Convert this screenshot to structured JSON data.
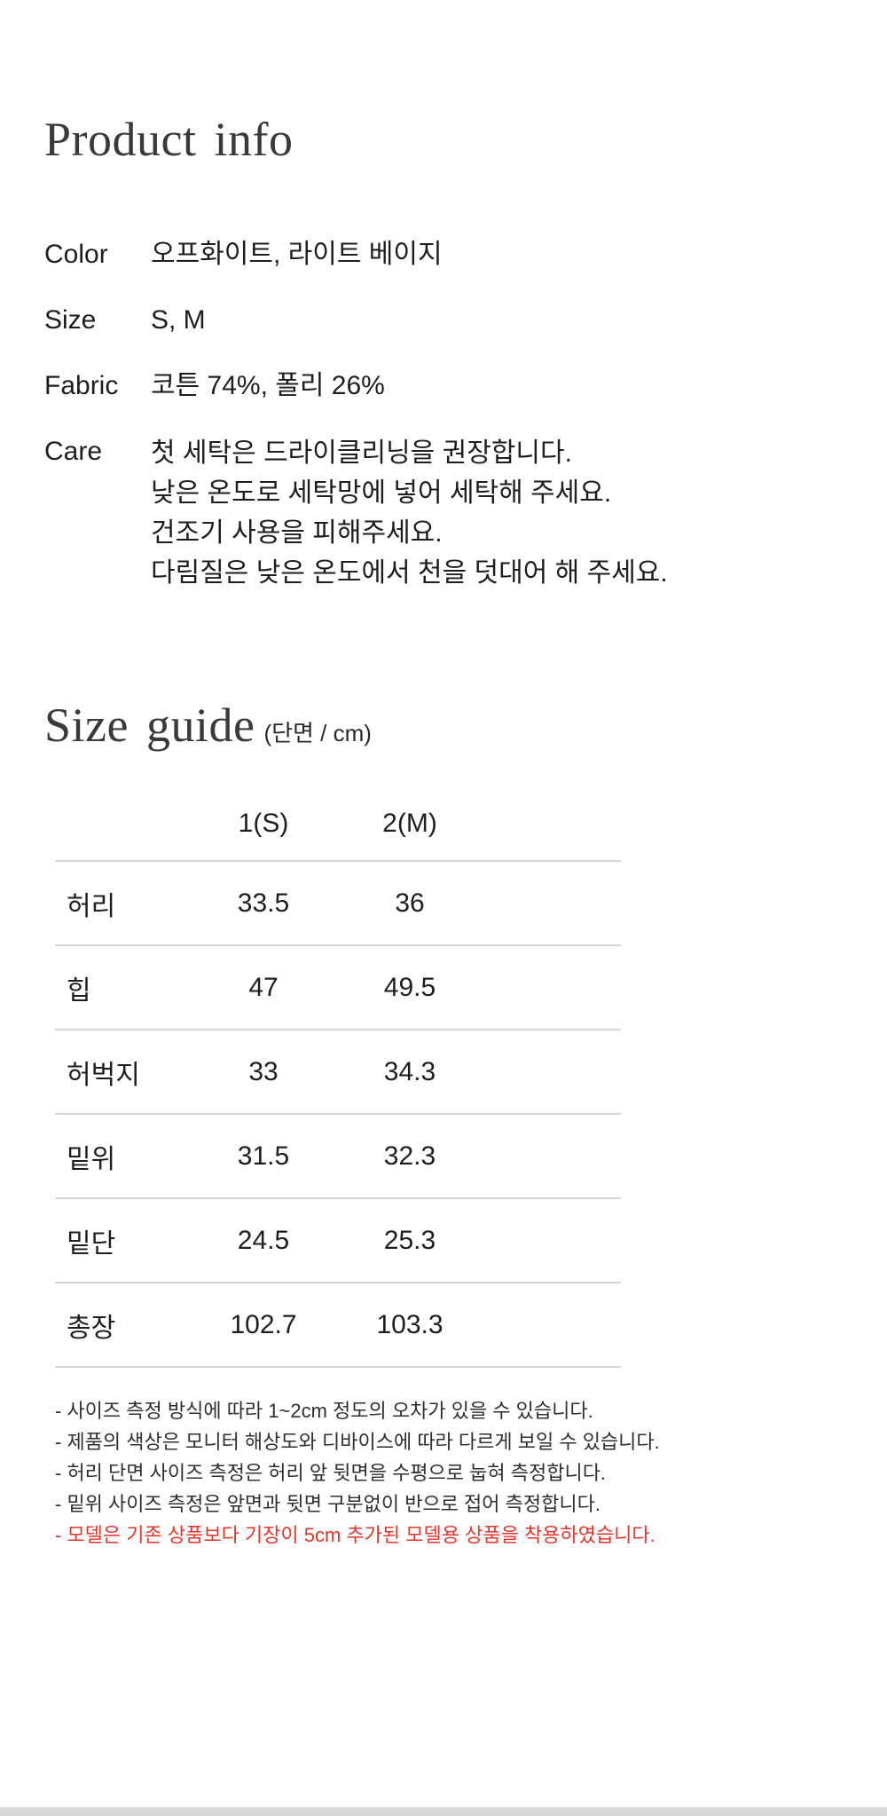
{
  "product_info": {
    "title": "Product info",
    "rows": [
      {
        "label": "Color",
        "value": "오프화이트, 라이트 베이지"
      },
      {
        "label": "Size",
        "value": "S, M"
      },
      {
        "label": "Fabric",
        "value": "코튼 74%, 폴리 26%"
      }
    ],
    "care": {
      "label": "Care",
      "lines": [
        "첫 세탁은 드라이클리닝을 권장합니다.",
        "낮은 온도로 세탁망에 넣어 세탁해 주세요.",
        "건조기 사용을 피해주세요.",
        "다림질은 낮은 온도에서 천을 덧대어 해 주세요."
      ]
    }
  },
  "size_guide": {
    "title": "Size guide",
    "unit_note": "(단면 / cm)",
    "table": {
      "columns": [
        "1(S)",
        "2(M)"
      ],
      "rows": [
        {
          "label": "허리",
          "values": [
            "33.5",
            "36"
          ]
        },
        {
          "label": "힙",
          "values": [
            "47",
            "49.5"
          ]
        },
        {
          "label": "허벅지",
          "values": [
            "33",
            "34.3"
          ]
        },
        {
          "label": "밑위",
          "values": [
            "31.5",
            "32.3"
          ]
        },
        {
          "label": "밑단",
          "values": [
            "24.5",
            "25.3"
          ]
        },
        {
          "label": "총장",
          "values": [
            "102.7",
            "103.3"
          ]
        }
      ]
    },
    "notes": [
      "- 사이즈 측정 방식에 따라 1~2cm 정도의 오차가 있을 수 있습니다.",
      "- 제품의 색상은 모니터 해상도와 디바이스에 따라 다르게 보일 수 있습니다.",
      "- 허리 단면 사이즈 측정은 허리 앞 뒷면을 수평으로 눕혀 측정합니다.",
      "- 밑위 사이즈 측정은 앞면과 뒷면 구분없이 반으로 접어 측정합니다.",
      "- 모델은 기존 상품보다 기장이 5cm 추가된 모델용 상품을 착용하였습니다."
    ]
  },
  "colors": {
    "body_text": "#1e1e1e",
    "heading_text": "#3a3a3a",
    "table_border": "#d6d6d6",
    "note_highlight": "#e8352b",
    "bottom_bar": "#d9d9d9"
  }
}
